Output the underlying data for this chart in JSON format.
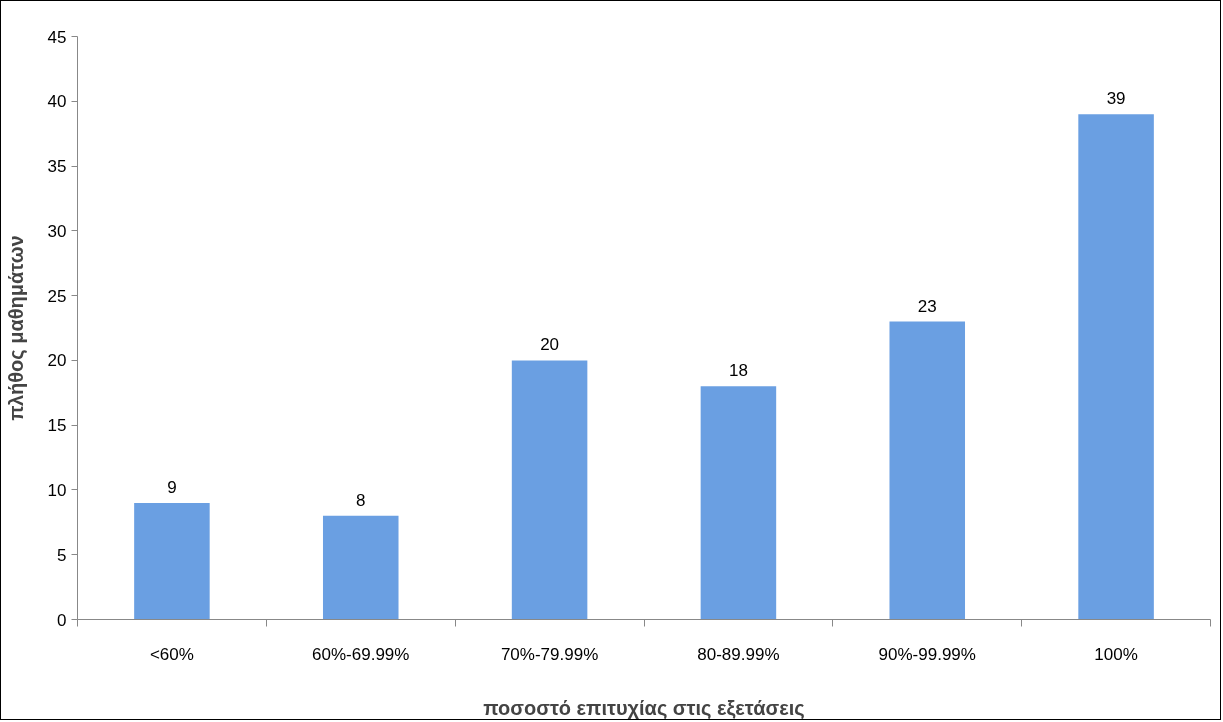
{
  "chart_data": {
    "type": "bar",
    "xlabel": "ποσοστό επιτυχίας στις εξετάσεις",
    "ylabel": "πλήθος μαθημάτων",
    "categories": [
      "<60%",
      "60%-69.99%",
      "70%-79.99%",
      "80-89.99%",
      "90%-99.99%",
      "100%"
    ],
    "values": [
      9,
      8,
      20,
      18,
      23,
      39
    ],
    "color": "#6a9fe2",
    "ylim": [
      0,
      45
    ],
    "yticks": [
      0,
      5,
      10,
      15,
      20,
      25,
      30,
      35,
      40,
      45
    ],
    "grid": false,
    "data_labels": true
  }
}
